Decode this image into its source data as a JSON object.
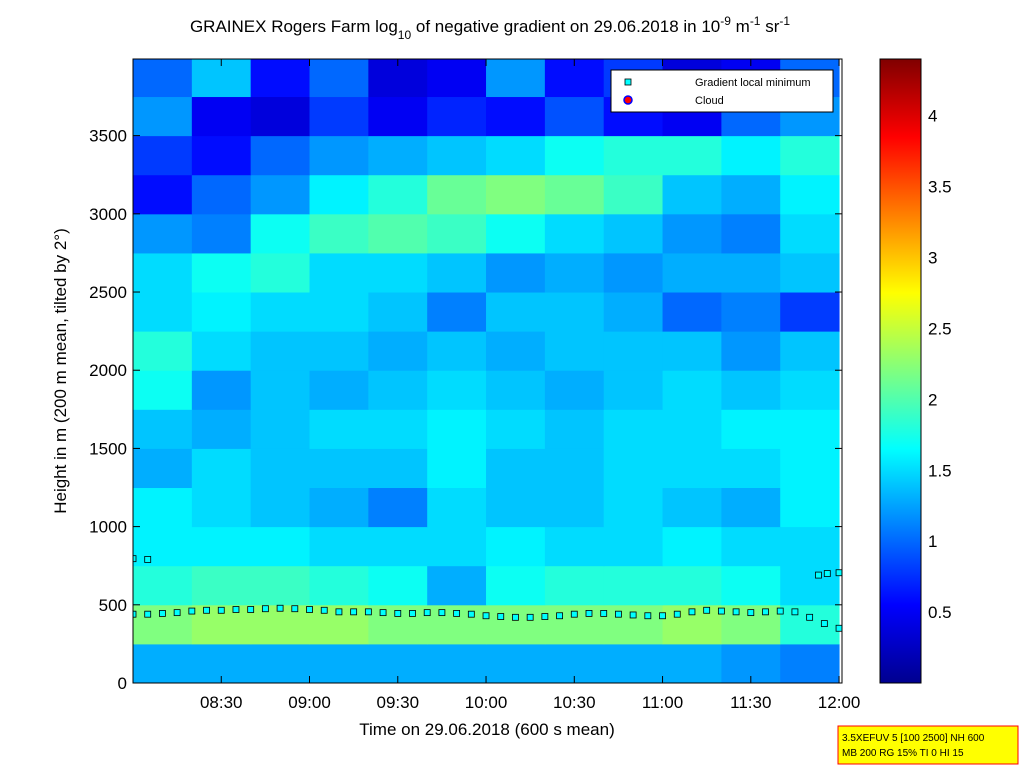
{
  "chart_data": {
    "type": "heatmap",
    "title": [
      {
        "text": "GRAINEX Rogers Farm log"
      },
      {
        "text": "10",
        "shift": "sub"
      },
      {
        "text": " of negative gradient on 29.06.2018 in 10"
      },
      {
        "text": "-9",
        "shift": "super"
      },
      {
        "text": " m"
      },
      {
        "text": "-1",
        "shift": "super"
      },
      {
        "text": " sr"
      },
      {
        "text": "-1",
        "shift": "super"
      }
    ],
    "x_label": "Time on 29.06.2018 (600 s mean)",
    "y_label": "Height in m (200 m mean, tilted by 2°)",
    "xlim": [
      480,
      721
    ],
    "xticks": [
      {
        "value": 510,
        "label": "08:30"
      },
      {
        "value": 540,
        "label": "09:00"
      },
      {
        "value": 570,
        "label": "09:30"
      },
      {
        "value": 600,
        "label": "10:00"
      },
      {
        "value": 630,
        "label": "10:30"
      },
      {
        "value": 660,
        "label": "11:00"
      },
      {
        "value": 690,
        "label": "11:30"
      },
      {
        "value": 720,
        "label": "12:00"
      }
    ],
    "ylim": [
      0,
      3990
    ],
    "yticks": [
      0,
      500,
      1000,
      1500,
      2000,
      2500,
      3000,
      3500
    ],
    "clim": [
      0,
      4.4
    ],
    "cticks": [
      0.5,
      1,
      1.5,
      2,
      2.5,
      3,
      3.5,
      4
    ],
    "colormap": "jet",
    "xbins": [
      480,
      500,
      520,
      540,
      560,
      580,
      600,
      620,
      640,
      660,
      680,
      700,
      720
    ],
    "ybins": [
      0,
      250,
      500,
      750,
      1000,
      1250,
      1500,
      1750,
      2000,
      2250,
      2500,
      2750,
      3000,
      3250,
      3500,
      3750,
      4000
    ],
    "z": [
      [
        1.3,
        1.3,
        1.3,
        1.3,
        1.3,
        1.3,
        1.3,
        1.3,
        1.3,
        1.3,
        1.2,
        1.1
      ],
      [
        2.2,
        2.3,
        2.3,
        2.3,
        2.2,
        2.2,
        2.2,
        2.2,
        2.2,
        2.3,
        2.2,
        1.8
      ],
      [
        1.8,
        1.9,
        1.9,
        1.8,
        1.7,
        1.3,
        1.7,
        1.8,
        1.8,
        1.8,
        1.7,
        1.5
      ],
      [
        1.6,
        1.6,
        1.6,
        1.5,
        1.5,
        1.5,
        1.6,
        1.5,
        1.5,
        1.6,
        1.5,
        1.5
      ],
      [
        1.6,
        1.5,
        1.4,
        1.3,
        1.1,
        1.5,
        1.4,
        1.4,
        1.5,
        1.4,
        1.3,
        1.6
      ],
      [
        1.3,
        1.5,
        1.4,
        1.4,
        1.4,
        1.6,
        1.4,
        1.4,
        1.5,
        1.5,
        1.5,
        1.6
      ],
      [
        1.4,
        1.3,
        1.4,
        1.5,
        1.5,
        1.6,
        1.5,
        1.4,
        1.5,
        1.5,
        1.6,
        1.6
      ],
      [
        1.7,
        1.2,
        1.4,
        1.3,
        1.4,
        1.5,
        1.4,
        1.3,
        1.4,
        1.5,
        1.4,
        1.5
      ],
      [
        1.8,
        1.5,
        1.4,
        1.4,
        1.3,
        1.4,
        1.3,
        1.4,
        1.4,
        1.4,
        1.2,
        1.4
      ],
      [
        1.5,
        1.6,
        1.5,
        1.5,
        1.4,
        1.1,
        1.4,
        1.4,
        1.3,
        1.0,
        1.1,
        0.8
      ],
      [
        1.5,
        1.7,
        1.8,
        1.5,
        1.5,
        1.4,
        1.2,
        1.3,
        1.2,
        1.3,
        1.3,
        1.4
      ],
      [
        1.2,
        1.1,
        1.7,
        1.9,
        2.0,
        1.9,
        1.7,
        1.5,
        1.4,
        1.2,
        1.1,
        1.5
      ],
      [
        0.6,
        1.0,
        1.2,
        1.6,
        1.8,
        2.1,
        2.2,
        2.1,
        1.9,
        1.4,
        1.3,
        1.6
      ],
      [
        0.8,
        0.6,
        1.0,
        1.2,
        1.3,
        1.4,
        1.5,
        1.7,
        1.8,
        1.8,
        1.6,
        1.8
      ],
      [
        1.2,
        0.5,
        0.4,
        0.8,
        0.5,
        0.7,
        0.6,
        0.9,
        0.6,
        0.5,
        1.0,
        1.2
      ],
      [
        1.0,
        1.4,
        0.6,
        1.0,
        0.4,
        0.5,
        1.2,
        0.6,
        0.8,
        0.4,
        0.5,
        1.0
      ]
    ],
    "series": [
      {
        "name": "Gradient local minimum",
        "marker": "square",
        "color": "#00ffff",
        "x": [
          480,
          485,
          490,
          495,
          500,
          505,
          510,
          515,
          520,
          525,
          530,
          535,
          540,
          545,
          550,
          555,
          560,
          565,
          570,
          575,
          580,
          585,
          590,
          595,
          600,
          605,
          610,
          615,
          620,
          625,
          630,
          635,
          640,
          645,
          650,
          655,
          660,
          665,
          670,
          675,
          680,
          685,
          690,
          695,
          700,
          705,
          710,
          715,
          720,
          480,
          485,
          713,
          716,
          720
        ],
        "y": [
          440,
          440,
          445,
          450,
          460,
          465,
          465,
          470,
          470,
          475,
          478,
          475,
          470,
          465,
          455,
          455,
          455,
          450,
          445,
          445,
          450,
          450,
          445,
          440,
          430,
          425,
          420,
          420,
          425,
          430,
          440,
          445,
          445,
          440,
          435,
          430,
          430,
          440,
          455,
          465,
          460,
          455,
          450,
          455,
          460,
          455,
          420,
          380,
          350,
          795,
          790,
          690,
          700,
          705
        ]
      },
      {
        "name": "Cloud",
        "marker": "circle",
        "color": "#ff0000",
        "edge": "#0000ff",
        "x": [],
        "y": []
      }
    ],
    "legend": "upper right",
    "annotation": [
      "3.5XEFUV 5 [100 2500] NH 600",
      "MB 200 RG 15% TI 0 HI 15"
    ]
  }
}
